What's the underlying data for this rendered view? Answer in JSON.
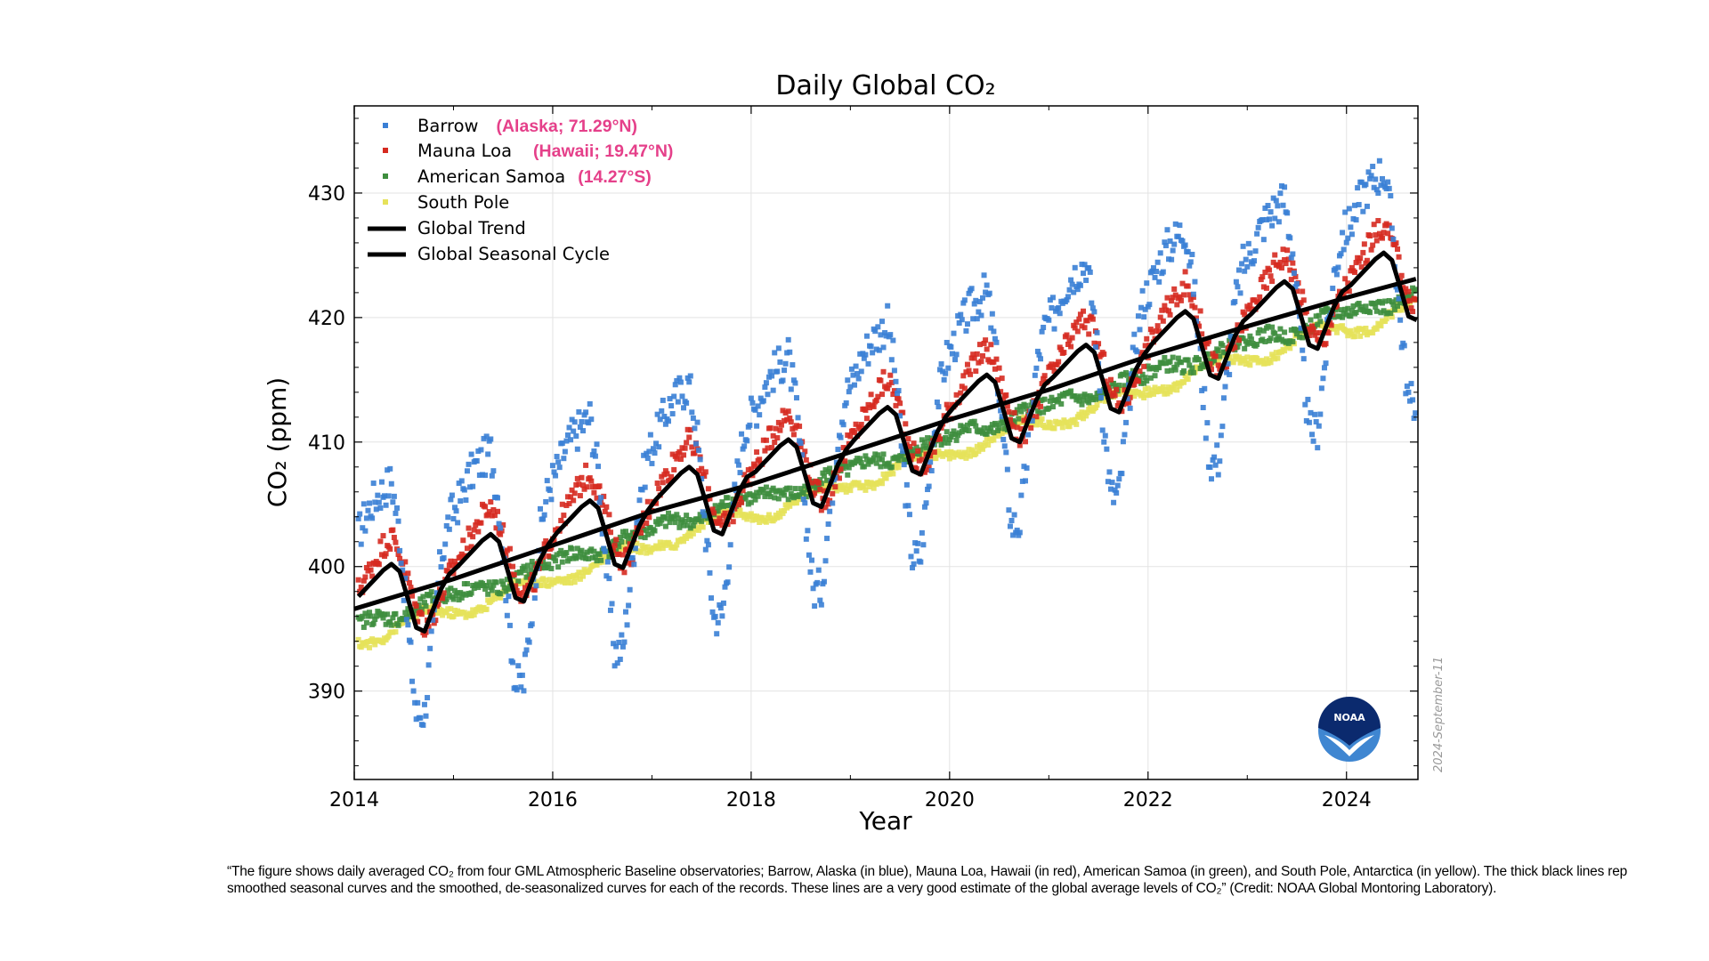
{
  "chart_data": {
    "type": "scatter",
    "title": "Daily Global CO₂",
    "xlabel": "Year",
    "ylabel": "CO₂ (ppm)",
    "xlim": [
      2014,
      2024.72
    ],
    "ylim": [
      382.9,
      437.0
    ],
    "xticks": [
      2014,
      2016,
      2018,
      2020,
      2022,
      2024
    ],
    "yticks": [
      390,
      400,
      410,
      420,
      430
    ],
    "grid": true,
    "legend_placement": "top-left",
    "x_start": "2014-01",
    "x_step": "monthly",
    "series": [
      {
        "name": "Barrow",
        "annotation": "(Alaska; 71.29°N)",
        "color": "#3a7fd5",
        "kind": "points",
        "values": [
          [
            402.6,
            404.3,
            405.5,
            406.2,
            406.9,
            402.6,
            394.9,
            388.1,
            388.3,
            394.5,
            400.7,
            403.9
          ],
          [
            405.0,
            406.7,
            407.9,
            408.6,
            409.3,
            405.0,
            397.3,
            390.5,
            390.7,
            396.9,
            403.1,
            406.3
          ],
          [
            407.7,
            409.4,
            410.6,
            411.3,
            412.0,
            407.7,
            400.0,
            393.2,
            393.4,
            399.6,
            405.8,
            409.0
          ],
          [
            410.4,
            412.1,
            413.3,
            414.0,
            414.7,
            410.4,
            402.7,
            395.9,
            396.1,
            402.3,
            408.5,
            411.7
          ],
          [
            412.6,
            414.3,
            415.5,
            416.2,
            416.9,
            412.6,
            404.9,
            398.1,
            398.3,
            404.5,
            410.7,
            413.9
          ],
          [
            415.2,
            416.9,
            418.1,
            418.8,
            419.5,
            415.2,
            407.5,
            400.7,
            400.9,
            407.1,
            413.3,
            416.5
          ],
          [
            417.8,
            419.5,
            420.7,
            421.4,
            422.1,
            417.8,
            410.1,
            403.3,
            403.5,
            409.7,
            415.9,
            419.1
          ],
          [
            420.2,
            421.9,
            423.1,
            423.8,
            424.5,
            420.2,
            412.5,
            405.7,
            405.9,
            412.1,
            418.3,
            421.5
          ],
          [
            422.9,
            424.6,
            425.8,
            426.5,
            427.2,
            422.9,
            415.2,
            408.4,
            408.6,
            414.8,
            421.0,
            424.2
          ],
          [
            425.3,
            427.0,
            428.2,
            428.9,
            429.6,
            425.3,
            417.6,
            410.8,
            411.0,
            417.2,
            423.4,
            426.6
          ],
          [
            427.6,
            429.3,
            430.5,
            431.2,
            431.9,
            427.6,
            419.9,
            413.1,
            413.3
          ]
        ]
      },
      {
        "name": "Mauna Loa",
        "annotation": "(Hawaii; 19.47°N)",
        "color": "#d62a20",
        "kind": "points",
        "values": [
          [
            398.1,
            399.3,
            400.5,
            401.7,
            402.4,
            401.1,
            398.9,
            396.6,
            395.3,
            396.0,
            397.7,
            399.4
          ],
          [
            400.5,
            401.7,
            402.9,
            404.1,
            404.8,
            403.5,
            401.3,
            399.0,
            397.7,
            398.4,
            400.1,
            401.8
          ],
          [
            403.2,
            404.4,
            405.6,
            406.8,
            407.5,
            406.2,
            404.0,
            401.7,
            400.4,
            401.1,
            402.8,
            404.5
          ],
          [
            405.9,
            407.1,
            408.3,
            409.5,
            410.2,
            408.9,
            406.7,
            404.4,
            403.1,
            403.8,
            405.5,
            407.2
          ],
          [
            408.1,
            409.3,
            410.5,
            411.7,
            412.4,
            411.1,
            408.9,
            406.6,
            405.3,
            406.0,
            407.7,
            409.4
          ],
          [
            410.7,
            411.9,
            413.1,
            414.3,
            415.0,
            413.7,
            411.5,
            409.2,
            407.9,
            408.6,
            410.3,
            412.0
          ],
          [
            413.3,
            414.5,
            415.7,
            416.9,
            417.6,
            416.3,
            414.1,
            411.8,
            410.5,
            411.2,
            412.9,
            414.6
          ],
          [
            415.7,
            416.9,
            418.1,
            419.3,
            420.0,
            418.7,
            416.5,
            414.2,
            412.9,
            413.6,
            415.3,
            417.0
          ],
          [
            418.4,
            419.6,
            420.8,
            422.0,
            422.7,
            421.4,
            419.2,
            416.9,
            415.6,
            416.3,
            418.0,
            419.7
          ],
          [
            420.8,
            422.0,
            423.2,
            424.4,
            425.1,
            423.8,
            421.6,
            419.3,
            418.0,
            418.7,
            420.4,
            422.1
          ],
          [
            423.1,
            424.3,
            425.5,
            426.7,
            427.4,
            426.1,
            423.9,
            421.6,
            420.3
          ]
        ]
      },
      {
        "name": "American Samoa",
        "annotation": "(14.27°S)",
        "color": "#3e8e3e",
        "kind": "points",
        "values": [
          [
            395.4,
            395.8,
            396.0,
            395.9,
            395.8,
            395.8,
            396.1,
            396.5,
            397.1,
            397.5,
            397.7,
            397.7
          ],
          [
            397.8,
            398.2,
            398.4,
            398.3,
            398.2,
            398.2,
            398.5,
            398.9,
            399.5,
            399.9,
            400.1,
            400.1
          ],
          [
            400.5,
            400.9,
            401.1,
            401.0,
            400.9,
            400.9,
            401.2,
            401.6,
            402.2,
            402.6,
            402.8,
            402.8
          ],
          [
            403.2,
            403.6,
            403.8,
            403.7,
            403.6,
            403.6,
            403.9,
            404.3,
            404.9,
            405.3,
            405.5,
            405.5
          ],
          [
            405.4,
            405.8,
            406.0,
            405.9,
            405.8,
            405.8,
            406.1,
            406.5,
            407.1,
            407.5,
            407.7,
            407.7
          ],
          [
            408.0,
            408.4,
            408.6,
            408.5,
            408.4,
            408.4,
            408.7,
            409.1,
            409.7,
            410.1,
            410.3,
            410.3
          ],
          [
            410.6,
            411.0,
            411.2,
            411.1,
            411.0,
            411.0,
            411.3,
            411.7,
            412.3,
            412.7,
            412.9,
            412.9
          ],
          [
            413.0,
            413.4,
            413.6,
            413.5,
            413.4,
            413.4,
            413.7,
            414.1,
            414.7,
            415.1,
            415.3,
            415.3
          ],
          [
            415.7,
            416.1,
            416.3,
            416.2,
            416.1,
            416.1,
            416.4,
            416.8,
            417.4,
            417.8,
            418.0,
            418.0
          ],
          [
            418.1,
            418.5,
            418.7,
            418.6,
            418.5,
            418.5,
            418.8,
            419.2,
            419.8,
            420.2,
            420.4,
            420.4
          ],
          [
            420.4,
            420.8,
            421.0,
            420.9,
            420.8,
            420.8,
            421.1,
            421.5,
            422.1
          ]
        ]
      },
      {
        "name": "South Pole",
        "annotation": "",
        "color": "#e6e25a",
        "kind": "points",
        "values": [
          [
            393.8,
            393.8,
            393.9,
            394.2,
            394.8,
            395.3,
            395.9,
            396.2,
            396.5,
            396.5,
            396.4,
            396.3
          ],
          [
            396.2,
            396.2,
            396.3,
            396.6,
            397.2,
            397.7,
            398.3,
            398.6,
            398.9,
            398.9,
            398.8,
            398.7
          ],
          [
            398.9,
            398.9,
            399.0,
            399.3,
            399.9,
            400.4,
            401.0,
            401.3,
            401.6,
            401.6,
            401.5,
            401.4
          ],
          [
            401.6,
            401.6,
            401.7,
            402.0,
            402.6,
            403.1,
            403.7,
            404.0,
            404.3,
            404.3,
            404.2,
            404.1
          ],
          [
            403.8,
            403.8,
            403.9,
            404.2,
            404.8,
            405.3,
            405.9,
            406.2,
            406.5,
            406.5,
            406.4,
            406.3
          ],
          [
            406.4,
            406.4,
            406.5,
            406.8,
            407.4,
            407.9,
            408.5,
            408.8,
            409.1,
            409.1,
            409.0,
            408.9
          ],
          [
            409.0,
            409.0,
            409.1,
            409.4,
            410.0,
            410.5,
            411.1,
            411.4,
            411.7,
            411.7,
            411.6,
            411.5
          ],
          [
            411.4,
            411.4,
            411.5,
            411.8,
            412.4,
            412.9,
            413.5,
            413.8,
            414.1,
            414.1,
            414.0,
            413.9
          ],
          [
            414.1,
            414.1,
            414.2,
            414.5,
            415.1,
            415.6,
            416.2,
            416.5,
            416.8,
            416.8,
            416.7,
            416.6
          ],
          [
            416.5,
            416.5,
            416.6,
            416.9,
            417.5,
            418.0,
            418.6,
            418.9,
            419.2,
            419.2,
            419.1,
            419.0
          ],
          [
            418.8,
            418.8,
            418.9,
            419.2,
            419.8,
            420.3,
            420.9,
            421.2,
            421.5
          ]
        ]
      },
      {
        "name": "Global Trend",
        "annotation": "",
        "color": "#000000",
        "kind": "line",
        "x": [
          2014,
          2015,
          2016,
          2017,
          2018,
          2019,
          2020,
          2021,
          2022,
          2023,
          2024,
          2024.7
        ],
        "y": [
          396.6,
          399.0,
          401.7,
          404.4,
          406.6,
          409.2,
          411.8,
          414.2,
          416.9,
          419.3,
          421.6,
          423.1
        ]
      },
      {
        "name": "Global Seasonal Cycle",
        "annotation": "",
        "color": "#000000",
        "kind": "line",
        "values": [
          [
            397.6,
            398.3,
            399.0,
            399.7,
            400.2,
            399.6,
            397.4,
            395.1,
            394.8,
            396.5,
            398.2,
            399.4
          ],
          [
            400.0,
            400.7,
            401.4,
            402.1,
            402.6,
            402.0,
            399.8,
            397.5,
            397.2,
            398.9,
            400.6,
            401.8
          ],
          [
            402.7,
            403.4,
            404.1,
            404.8,
            405.3,
            404.7,
            402.5,
            400.2,
            399.9,
            401.6,
            403.3,
            404.5
          ],
          [
            405.4,
            406.1,
            406.8,
            407.5,
            408.0,
            407.4,
            405.2,
            402.9,
            402.6,
            404.3,
            406.0,
            407.2
          ],
          [
            407.6,
            408.3,
            409.0,
            409.7,
            410.2,
            409.6,
            407.4,
            405.1,
            404.8,
            406.5,
            408.2,
            409.4
          ],
          [
            410.2,
            410.9,
            411.6,
            412.3,
            412.8,
            412.2,
            410.0,
            407.7,
            407.4,
            409.1,
            410.8,
            412.0
          ],
          [
            412.8,
            413.5,
            414.2,
            414.9,
            415.4,
            414.8,
            412.6,
            410.3,
            410.0,
            411.7,
            413.4,
            414.6
          ],
          [
            415.2,
            415.9,
            416.6,
            417.3,
            417.8,
            417.2,
            415.0,
            412.7,
            412.4,
            414.1,
            415.8,
            417.0
          ],
          [
            417.9,
            418.6,
            419.3,
            420.0,
            420.5,
            419.9,
            417.7,
            415.4,
            415.1,
            416.8,
            418.5,
            419.7
          ],
          [
            420.3,
            421.0,
            421.7,
            422.4,
            422.9,
            422.3,
            420.1,
            417.8,
            417.5,
            419.2,
            420.9,
            422.1
          ],
          [
            422.6,
            423.3,
            424.0,
            424.7,
            425.2,
            424.6,
            422.4,
            420.1,
            419.8
          ]
        ]
      }
    ],
    "annotation_color": "#e5408a",
    "date_stamp": "2024-September-11",
    "logo": "NOAA"
  },
  "caption": {
    "line1": "“The figure shows daily averaged CO₂ from four GML Atmospheric Baseline observatories; Barrow, Alaska (in blue), Mauna Loa, Hawaii (in red), American Samoa (in green), and South Pole, Antarctica (in yellow). The thick black lines rep",
    "line2": "smoothed seasonal curves and the smoothed, de-seasonalized curves for each of the records. These lines are a very good estimate of the global average levels of CO₂” (Credit: NOAA Global Montoring Laboratory)."
  }
}
